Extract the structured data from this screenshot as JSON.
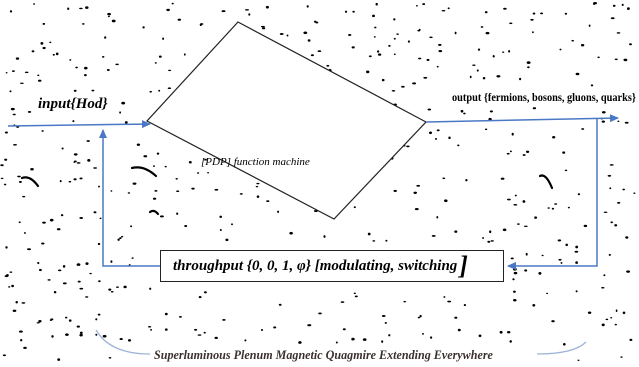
{
  "diagram": {
    "input_label": "input{Hod}",
    "machine_label": "[PDP] function machine",
    "output_label": "output {fermions, bosons, gluons, quarks}",
    "throughput_label": "throughput {0, 0, 1, φ} [modulating, switching",
    "throughput_closing_bracket": "]",
    "footer_label": "Superluminous Plenum Magnetic Quagmire Extending Everywhere"
  },
  "colors": {
    "arrow": "#4a78c4",
    "outline": "#222222",
    "speckle": "#000000",
    "brace": "#9fb4d6"
  }
}
